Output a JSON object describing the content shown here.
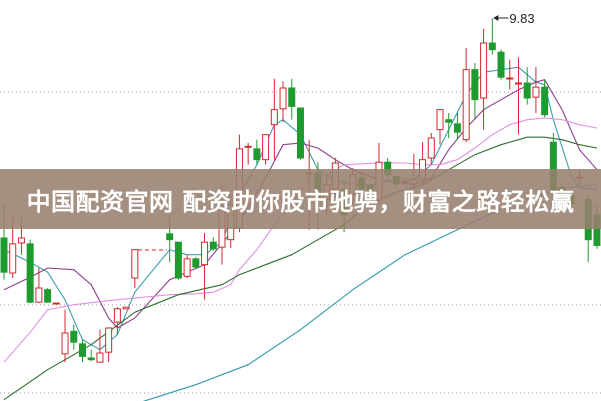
{
  "banner": {
    "text": "中国配资官网 配资助你股市驰骋，财富之路轻松赢"
  },
  "chart_data": {
    "type": "candlestick",
    "title": "",
    "xlabel": "",
    "ylabel": "",
    "grid": "horizontal dotted",
    "max_annotation": {
      "label": "9.83",
      "value": 9.83,
      "index": 56
    },
    "colors": {
      "up": "#d0282e",
      "down": "#1f9a2f",
      "ma5": "#3a9fb0",
      "ma10": "#8a3f8a",
      "ma20": "#e08fe0",
      "ma30": "#2e6e2e",
      "ma60": "#2f9aa8"
    },
    "ohlc_fields": [
      "open",
      "high",
      "low",
      "close"
    ],
    "candles": [
      [
        7.19,
        7.59,
        6.69,
        6.78
      ],
      [
        6.77,
        7.47,
        6.71,
        7.12
      ],
      [
        7.13,
        7.43,
        6.99,
        7.19
      ],
      [
        7.12,
        7.17,
        6.41,
        6.42
      ],
      [
        6.42,
        6.83,
        6.41,
        6.59
      ],
      [
        6.57,
        6.59,
        6.42,
        6.42
      ],
      [
        6.4,
        6.41,
        6.4,
        6.41
      ],
      [
        5.8,
        6.33,
        5.7,
        6.05
      ],
      [
        6.07,
        6.15,
        5.85,
        5.94
      ],
      [
        5.92,
        5.97,
        5.7,
        5.77
      ],
      [
        5.75,
        5.85,
        5.71,
        5.73
      ],
      [
        5.7,
        6.09,
        5.7,
        5.81
      ],
      [
        5.82,
        6.12,
        5.7,
        6.11
      ],
      [
        6.18,
        6.36,
        6.03,
        6.34
      ],
      [
        6.34,
        6.36,
        6.34,
        6.36
      ],
      [
        6.71,
        7.05,
        6.59,
        7.05
      ],
      null,
      null,
      null,
      [
        7.24,
        7.47,
        6.9,
        7.17
      ],
      [
        7.14,
        7.14,
        6.69,
        6.71
      ],
      [
        6.73,
        6.99,
        6.71,
        6.94
      ],
      [
        6.94,
        6.96,
        6.82,
        6.84
      ],
      [
        6.87,
        7.25,
        6.45,
        7.14
      ],
      [
        7.14,
        7.2,
        7.04,
        7.06
      ],
      [
        7.08,
        7.83,
        6.87,
        7.53
      ],
      [
        7.17,
        7.71,
        7.07,
        7.59
      ],
      [
        7.31,
        8.43,
        7.26,
        8.26
      ],
      [
        8.28,
        8.33,
        8.07,
        8.29
      ],
      [
        8.26,
        8.37,
        8.07,
        8.13
      ],
      [
        8.13,
        8.43,
        8.07,
        8.43
      ],
      [
        8.55,
        9.1,
        8.13,
        8.73
      ],
      [
        8.74,
        9.07,
        8.58,
        8.99
      ],
      [
        8.99,
        9.1,
        8.61,
        8.77
      ],
      [
        8.75,
        8.75,
        8.13,
        8.15
      ],
      [
        7.96,
        8.37,
        7.29,
        7.97
      ],
      [
        7.97,
        8.1,
        7.29,
        7.65
      ],
      [
        7.65,
        7.95,
        7.47,
        7.83
      ],
      [
        7.77,
        8.15,
        7.65,
        8.09
      ],
      [
        7.77,
        7.89,
        7.26,
        7.47
      ],
      [
        7.71,
        8.03,
        7.59,
        7.95
      ],
      [
        7.91,
        7.98,
        7.71,
        7.77
      ],
      [
        7.83,
        7.83,
        7.65,
        7.71
      ],
      [
        7.65,
        8.33,
        7.59,
        8.1
      ],
      [
        8.1,
        8.15,
        7.89,
        7.95
      ],
      [
        7.93,
        7.93,
        7.79,
        7.84
      ],
      [
        7.86,
        7.89,
        7.84,
        7.87
      ],
      [
        7.84,
        8.2,
        7.77,
        7.89
      ],
      [
        7.89,
        8.34,
        7.83,
        8.13
      ],
      [
        8.15,
        8.45,
        8.07,
        8.39
      ],
      [
        8.49,
        8.73,
        8.31,
        8.73
      ],
      [
        8.61,
        8.69,
        8.39,
        8.58
      ],
      [
        8.56,
        8.69,
        8.37,
        8.46
      ],
      [
        8.37,
        9.47,
        8.34,
        9.21
      ],
      [
        9.21,
        9.29,
        8.63,
        8.85
      ],
      [
        8.87,
        9.7,
        8.49,
        9.53
      ],
      [
        9.53,
        9.83,
        9.39,
        9.45
      ],
      [
        9.42,
        9.45,
        9.09,
        9.12
      ],
      [
        9.1,
        9.33,
        8.97,
        9.11
      ],
      [
        9.04,
        9.36,
        8.43,
        9.05
      ],
      [
        9.05,
        9.24,
        8.79,
        8.87
      ],
      [
        8.88,
        9.24,
        8.69,
        9.0
      ],
      [
        9.0,
        9.09,
        8.64,
        8.67
      ],
      [
        8.34,
        8.45,
        7.74,
        7.77
      ],
      [
        7.8,
        7.85,
        7.6,
        7.65
      ],
      [
        7.7,
        7.75,
        7.55,
        7.6
      ],
      [
        7.91,
        8.0,
        7.83,
        7.92
      ],
      [
        7.65,
        7.71,
        6.9,
        7.17
      ],
      [
        7.47,
        7.59,
        7.06,
        7.1
      ]
    ],
    "moving_averages": [
      {
        "key": "ma5",
        "points": [
          [
            0,
            7.05
          ],
          [
            3,
            6.9
          ],
          [
            5,
            6.78
          ],
          [
            7,
            6.45
          ],
          [
            9,
            5.97
          ],
          [
            11,
            5.85
          ],
          [
            13,
            6.03
          ],
          [
            15,
            6.54
          ],
          [
            19,
            7.05
          ],
          [
            21,
            6.99
          ],
          [
            23,
            6.99
          ],
          [
            25,
            7.14
          ],
          [
            27,
            7.71
          ],
          [
            29,
            8.07
          ],
          [
            31,
            8.55
          ],
          [
            32,
            8.61
          ],
          [
            34,
            8.43
          ],
          [
            36,
            8.01
          ],
          [
            38,
            7.89
          ],
          [
            40,
            7.83
          ],
          [
            43,
            7.83
          ],
          [
            45,
            7.91
          ],
          [
            47,
            7.89
          ],
          [
            49,
            8.07
          ],
          [
            51,
            8.49
          ],
          [
            53,
            8.91
          ],
          [
            55,
            9.18
          ],
          [
            57,
            9.21
          ],
          [
            59,
            9.24
          ],
          [
            61,
            9.06
          ],
          [
            62,
            9.03
          ],
          [
            63,
            8.61
          ],
          [
            65,
            7.95
          ],
          [
            66,
            7.79
          ],
          [
            68,
            7.77
          ]
        ]
      },
      {
        "key": "ma10",
        "points": [
          [
            0,
            6.57
          ],
          [
            3,
            6.72
          ],
          [
            5,
            6.83
          ],
          [
            8,
            6.81
          ],
          [
            10,
            6.63
          ],
          [
            12,
            6.23
          ],
          [
            13,
            6.11
          ],
          [
            15,
            6.23
          ],
          [
            19,
            6.69
          ],
          [
            23,
            6.87
          ],
          [
            27,
            7.38
          ],
          [
            30,
            7.91
          ],
          [
            32,
            8.31
          ],
          [
            34,
            8.33
          ],
          [
            36,
            8.27
          ],
          [
            38,
            8.13
          ],
          [
            40,
            8.01
          ],
          [
            43,
            7.89
          ],
          [
            47,
            7.83
          ],
          [
            49,
            7.91
          ],
          [
            51,
            8.25
          ],
          [
            53,
            8.51
          ],
          [
            55,
            8.73
          ],
          [
            57,
            8.85
          ],
          [
            59,
            8.97
          ],
          [
            61,
            9.06
          ],
          [
            62,
            9.09
          ],
          [
            64,
            8.73
          ],
          [
            66,
            8.25
          ],
          [
            68,
            8.01
          ]
        ]
      },
      {
        "key": "ma20",
        "points": [
          [
            0,
            5.7
          ],
          [
            3,
            6.06
          ],
          [
            5,
            6.33
          ],
          [
            8,
            6.39
          ],
          [
            13,
            6.45
          ],
          [
            19,
            6.51
          ],
          [
            22,
            6.52
          ],
          [
            24,
            6.54
          ],
          [
            26,
            6.63
          ],
          [
            27,
            6.81
          ],
          [
            29,
            7.05
          ],
          [
            31,
            7.35
          ],
          [
            33,
            7.59
          ],
          [
            35,
            7.89
          ],
          [
            37,
            7.95
          ],
          [
            39,
            8.07
          ],
          [
            43,
            8.09
          ],
          [
            46,
            8.09
          ],
          [
            48,
            8.07
          ],
          [
            50,
            8.07
          ],
          [
            52,
            8.13
          ],
          [
            54,
            8.27
          ],
          [
            56,
            8.43
          ],
          [
            58,
            8.55
          ],
          [
            60,
            8.61
          ],
          [
            62,
            8.63
          ],
          [
            64,
            8.61
          ],
          [
            66,
            8.55
          ],
          [
            68,
            8.51
          ]
        ]
      },
      {
        "key": "ma30",
        "points": [
          [
            0,
            5.25
          ],
          [
            5,
            5.61
          ],
          [
            10,
            5.91
          ],
          [
            15,
            6.3
          ],
          [
            20,
            6.51
          ],
          [
            25,
            6.63
          ],
          [
            27,
            6.75
          ],
          [
            30,
            6.87
          ],
          [
            33,
            6.99
          ],
          [
            36,
            7.17
          ],
          [
            39,
            7.35
          ],
          [
            42,
            7.61
          ],
          [
            45,
            7.74
          ],
          [
            48,
            7.83
          ],
          [
            51,
            8.01
          ],
          [
            54,
            8.19
          ],
          [
            57,
            8.31
          ],
          [
            60,
            8.4
          ],
          [
            62,
            8.4
          ],
          [
            64,
            8.37
          ],
          [
            66,
            8.31
          ],
          [
            68,
            8.27
          ]
        ]
      },
      {
        "key": "ma60",
        "points": [
          [
            16,
            5.23
          ],
          [
            22,
            5.43
          ],
          [
            28,
            5.67
          ],
          [
            34,
            6.09
          ],
          [
            40,
            6.57
          ],
          [
            46,
            6.99
          ],
          [
            52,
            7.29
          ],
          [
            58,
            7.59
          ],
          [
            64,
            7.79
          ],
          [
            68,
            7.83
          ]
        ]
      }
    ]
  }
}
